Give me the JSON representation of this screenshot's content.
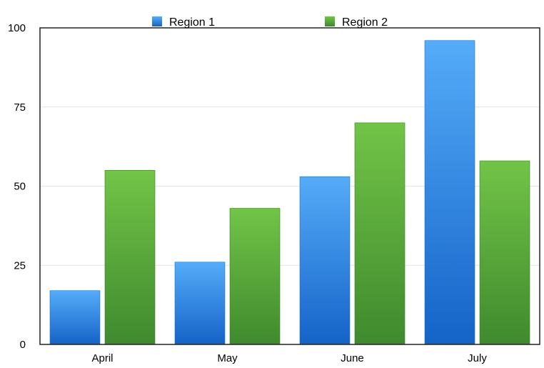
{
  "chart_data": {
    "type": "bar",
    "categories": [
      "April",
      "May",
      "June",
      "July"
    ],
    "series": [
      {
        "name": "Region 1",
        "values": [
          17,
          26,
          53,
          96
        ],
        "color": "#2f86e0"
      },
      {
        "name": "Region 2",
        "values": [
          55,
          43,
          70,
          58
        ],
        "color": "#4fa63a"
      }
    ],
    "ylim": [
      0,
      100
    ],
    "yticks": [
      "0",
      "25",
      "50",
      "75",
      "100"
    ],
    "grid": true,
    "legend": "top"
  }
}
